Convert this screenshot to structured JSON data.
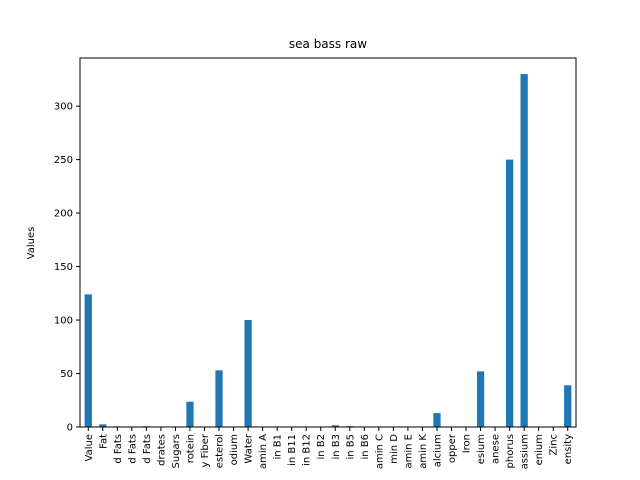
{
  "chart_data": {
    "type": "bar",
    "title": "sea bass raw",
    "xlabel": "",
    "ylabel": "Values",
    "ylim": [
      0,
      345
    ],
    "yticks": [
      0,
      50,
      100,
      150,
      200,
      250,
      300
    ],
    "grid": false,
    "legend": "none",
    "bar_color": "#1f77b4",
    "categories": [
      "Value",
      "Fat",
      "d Fats",
      "d Fats",
      "d Fats",
      "drates",
      "Sugars",
      "rotein",
      "y Fiber",
      "esterol",
      "odium",
      "Water",
      "amin A",
      "in B1",
      "in B11",
      "in B12",
      "in B2",
      "in B3",
      "in B5",
      "in B6",
      "amin C",
      "min D",
      "amin E",
      "amin K",
      "alcium",
      "opper",
      "Iron",
      "esium",
      "anese",
      "phorus",
      "assium",
      "enium",
      "Zinc",
      "ensity"
    ],
    "values": [
      124,
      2.5,
      0.6,
      0.4,
      0.7,
      0,
      0,
      23.6,
      0,
      53,
      0,
      100,
      0,
      0.1,
      0,
      0.3,
      0.1,
      1.6,
      0.8,
      0.4,
      0,
      0,
      0.4,
      0,
      13,
      0,
      0.3,
      52,
      0,
      250,
      330,
      0,
      0.4,
      39
    ]
  }
}
